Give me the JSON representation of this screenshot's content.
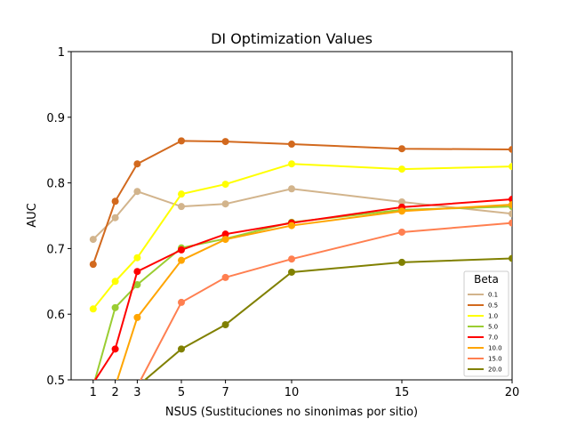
{
  "chart_data": {
    "type": "line",
    "title": "DI Optimization Values",
    "x_label": "NSUS (Sustituciones no sinonimas por sitio)",
    "y_label": "AUC",
    "x": [
      1,
      2,
      3,
      5,
      7,
      10,
      15,
      20
    ],
    "xlim": [
      0,
      20
    ],
    "xticks": [
      1,
      2,
      3,
      5,
      7,
      10,
      15,
      20
    ],
    "ylim": [
      0.5,
      1.0
    ],
    "yticks": [
      0.5,
      0.6,
      0.7,
      0.8,
      0.9,
      1.0
    ],
    "legend_title": "Beta",
    "legend_position": "lower right",
    "series": [
      {
        "name": "0.1",
        "color": "#d2b48c",
        "values": [
          0.714,
          0.747,
          0.787,
          0.764,
          0.768,
          0.791,
          0.771,
          0.753
        ]
      },
      {
        "name": "0.5",
        "color": "#d2691e",
        "values": [
          0.676,
          0.772,
          0.829,
          0.864,
          0.863,
          0.859,
          0.852,
          0.851
        ]
      },
      {
        "name": "1.0",
        "color": "#ffff00",
        "values": [
          0.608,
          0.65,
          0.686,
          0.783,
          0.798,
          0.829,
          0.821,
          0.825
        ]
      },
      {
        "name": "5.0",
        "color": "#9acd32",
        "values": [
          0.49,
          0.61,
          0.645,
          0.701,
          0.715,
          0.74,
          0.759,
          0.764
        ]
      },
      {
        "name": "7.0",
        "color": "#ff0000",
        "values": [
          0.495,
          0.547,
          0.665,
          0.698,
          0.722,
          0.739,
          0.763,
          0.775
        ]
      },
      {
        "name": "10.0",
        "color": "#ffa500",
        "values": [
          null,
          0.49,
          0.595,
          0.682,
          0.714,
          0.735,
          0.757,
          0.767
        ]
      },
      {
        "name": "15.0",
        "color": "#ff7f50",
        "values": [
          null,
          null,
          0.49,
          0.618,
          0.656,
          0.684,
          0.725,
          0.739
        ]
      },
      {
        "name": "20.0",
        "color": "#808000",
        "values": [
          null,
          null,
          0.49,
          0.547,
          0.584,
          0.664,
          0.679,
          0.685
        ]
      }
    ]
  }
}
